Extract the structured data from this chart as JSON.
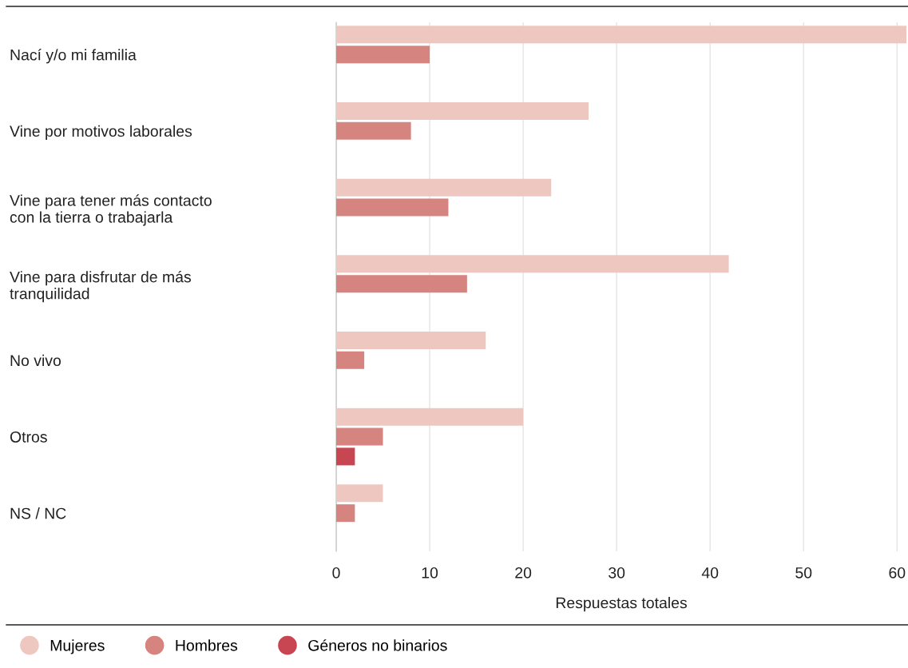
{
  "chart_data": {
    "type": "bar",
    "orientation": "horizontal",
    "xlabel": "Respuestas totales",
    "categories": [
      "Nací y/o mi familia",
      "Vine por motivos laborales",
      "Vine para tener más contacto\ncon la tierra o trabajarla",
      "Vine para disfrutar de más\ntranquilidad",
      "No vivo",
      "Otros",
      "NS / NC"
    ],
    "series": [
      {
        "name": "Mujeres",
        "color": "#eec8c0",
        "values": [
          61,
          27,
          23,
          42,
          16,
          20,
          5
        ]
      },
      {
        "name": "Hombres",
        "color": "#d6847f",
        "values": [
          10,
          8,
          12,
          14,
          3,
          5,
          2
        ]
      },
      {
        "name": "Géneros no binarios",
        "color": "#c84552",
        "values": [
          0,
          0,
          0,
          0,
          0,
          2,
          0
        ]
      }
    ],
    "xlim": [
      0,
      61
    ],
    "xticks": [
      0,
      10,
      20,
      30,
      40,
      50,
      60
    ],
    "grid": "x",
    "legend": "bottom"
  }
}
